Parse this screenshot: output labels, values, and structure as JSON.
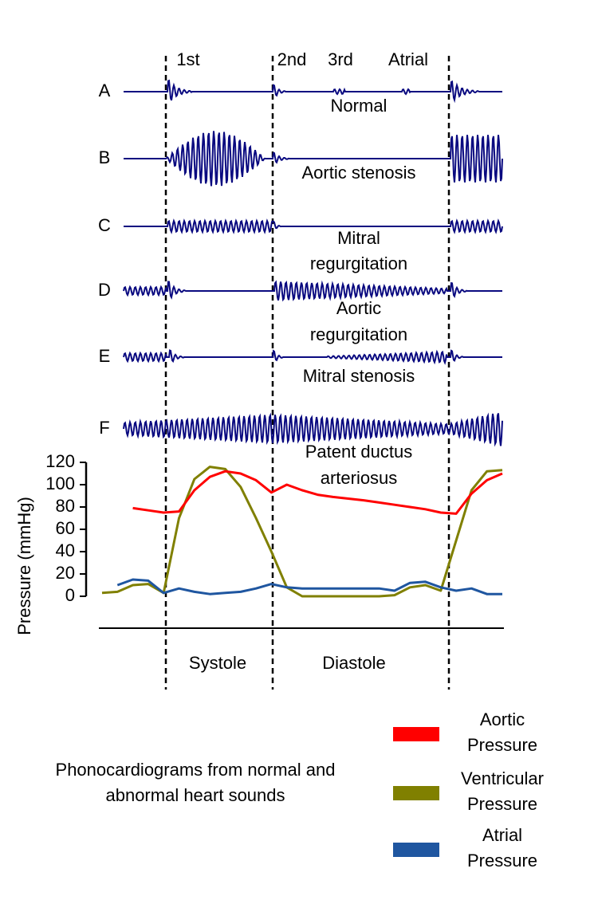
{
  "sounds": [
    "1st",
    "2nd",
    "3rd",
    "Atrial"
  ],
  "rows": [
    {
      "letter": "A",
      "caption": [
        "Normal"
      ]
    },
    {
      "letter": "B",
      "caption": [
        "Aortic stenosis"
      ]
    },
    {
      "letter": "C",
      "caption": [
        "Mitral",
        "regurgitation"
      ]
    },
    {
      "letter": "D",
      "caption": [
        "Aortic",
        "regurgitation"
      ]
    },
    {
      "letter": "E",
      "caption": [
        "Mitral stenosis"
      ]
    },
    {
      "letter": "F",
      "caption": [
        "Patent ductus",
        "arteriosus"
      ]
    }
  ],
  "pressure": {
    "y_label": "Pressure (mmHg)",
    "ylim": [
      0,
      120
    ],
    "yticks": [
      0,
      20,
      40,
      60,
      80,
      100,
      120
    ],
    "series": [
      {
        "name": "Aortic Pressure",
        "color": "#ff0000",
        "values": [
          null,
          null,
          79,
          77,
          75,
          76,
          95,
          107,
          112,
          110,
          104,
          93,
          100,
          95,
          91,
          89,
          87.5,
          86,
          84,
          82,
          80,
          78,
          75,
          74,
          92,
          104,
          110
        ]
      },
      {
        "name": "Ventricular Pressure",
        "color": "#808000",
        "values": [
          3,
          4,
          10,
          11,
          3,
          70,
          105,
          116,
          114,
          98,
          70,
          40,
          8,
          0,
          0,
          0,
          0,
          0,
          0,
          1,
          8,
          10,
          5,
          50,
          95,
          112,
          113
        ]
      },
      {
        "name": "Atrial Pressure",
        "color": "#1f56a0",
        "values": [
          null,
          10,
          15,
          14,
          3,
          7,
          4,
          2,
          3,
          4,
          7,
          11,
          8,
          7,
          7,
          7,
          7,
          7,
          7,
          5,
          12,
          13,
          8,
          5,
          7,
          2,
          2
        ]
      }
    ]
  },
  "phases": [
    "Systole",
    "Diastole"
  ],
  "caption": "Phonocardiograms from normal and abnormal heart sounds"
}
